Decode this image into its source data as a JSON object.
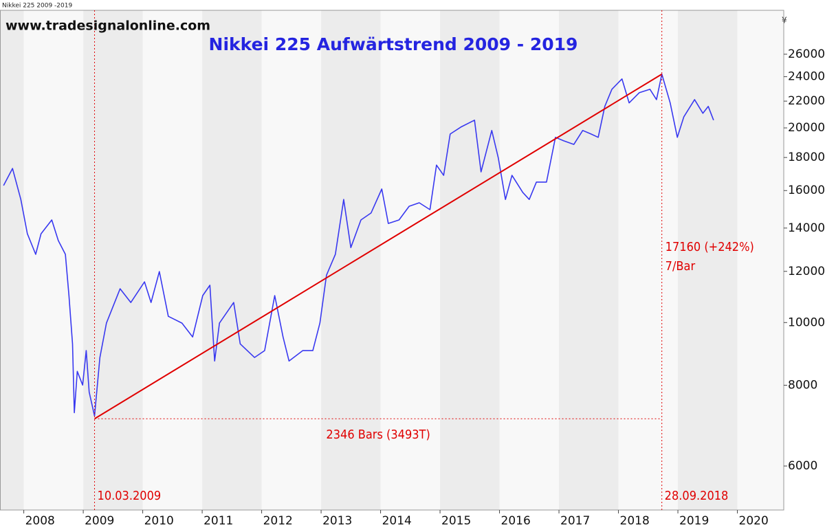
{
  "chart_data": {
    "type": "line",
    "header": "Nikkei 225 2009 -2019",
    "source": "www.tradesignalonline.com",
    "title": "Nikkei 225 Aufwärtstrend 2009 - 2019",
    "currency": "¥",
    "log_scale": true,
    "xlim": [
      2007.6,
      2020.78
    ],
    "ylim": [
      5130,
      30400
    ],
    "xticks": [
      2008,
      2009,
      2010,
      2011,
      2012,
      2013,
      2014,
      2015,
      2016,
      2017,
      2018,
      2019,
      2020
    ],
    "yticks": [
      6000,
      8000,
      10000,
      12000,
      14000,
      16000,
      18000,
      20000,
      22000,
      24000,
      26000
    ],
    "series": [
      {
        "color": "#3838f0",
        "x": [
          2007.66,
          2007.81,
          2007.95,
          2008.06,
          2008.2,
          2008.29,
          2008.47,
          2008.58,
          2008.7,
          2008.76,
          2008.82,
          2008.85,
          2008.9,
          2008.99,
          2009.05,
          2009.1,
          2009.19,
          2009.28,
          2009.39,
          2009.62,
          2009.8,
          2010.03,
          2010.14,
          2010.28,
          2010.43,
          2010.66,
          2010.84,
          2011.01,
          2011.13,
          2011.21,
          2011.29,
          2011.53,
          2011.64,
          2011.88,
          2012.05,
          2012.22,
          2012.36,
          2012.46,
          2012.69,
          2012.86,
          2012.98,
          2013.09,
          2013.24,
          2013.38,
          2013.5,
          2013.67,
          2013.84,
          2014.02,
          2014.13,
          2014.31,
          2014.48,
          2014.65,
          2014.83,
          2014.94,
          2015.06,
          2015.17,
          2015.35,
          2015.58,
          2015.69,
          2015.87,
          2015.98,
          2016.1,
          2016.21,
          2016.39,
          2016.5,
          2016.62,
          2016.79,
          2016.94,
          2017.08,
          2017.25,
          2017.4,
          2017.54,
          2017.66,
          2017.77,
          2017.89,
          2018.06,
          2018.18,
          2018.35,
          2018.53,
          2018.64,
          2018.73,
          2018.87,
          2018.99,
          2019.1,
          2019.28,
          2019.42,
          2019.51,
          2019.6
        ],
        "values": [
          16290,
          17310,
          15500,
          13720,
          12750,
          13720,
          14410,
          13390,
          12750,
          11010,
          9270,
          7255,
          8405,
          8005,
          9050,
          7810,
          7170,
          8830,
          9980,
          11280,
          10740,
          11560,
          10740,
          11990,
          10225,
          9980,
          9500,
          11010,
          11420,
          8720,
          9980,
          10740,
          9270,
          8830,
          9050,
          11010,
          9500,
          8720,
          9050,
          9050,
          9980,
          11840,
          12750,
          15500,
          13060,
          14410,
          14770,
          16090,
          14230,
          14410,
          15130,
          15320,
          14950,
          17520,
          16890,
          19570,
          20060,
          20560,
          17100,
          19820,
          17970,
          15500,
          16890,
          15900,
          15500,
          16490,
          16490,
          19340,
          19100,
          18860,
          19820,
          19570,
          19340,
          21590,
          22950,
          23810,
          21860,
          22670,
          22950,
          22120,
          24220,
          21860,
          19340,
          20810,
          22120,
          21070,
          21590,
          20560
        ]
      }
    ],
    "trendline": {
      "color": "#e00000",
      "x": [
        2009.19,
        2018.73
      ],
      "values": [
        7100,
        24220
      ],
      "start_label": "10.03.2009",
      "end_label": "28.09.2018",
      "change": "17160 (+242%)",
      "rate": "7/Bar",
      "length": "2346 Bars (3493T)"
    }
  }
}
